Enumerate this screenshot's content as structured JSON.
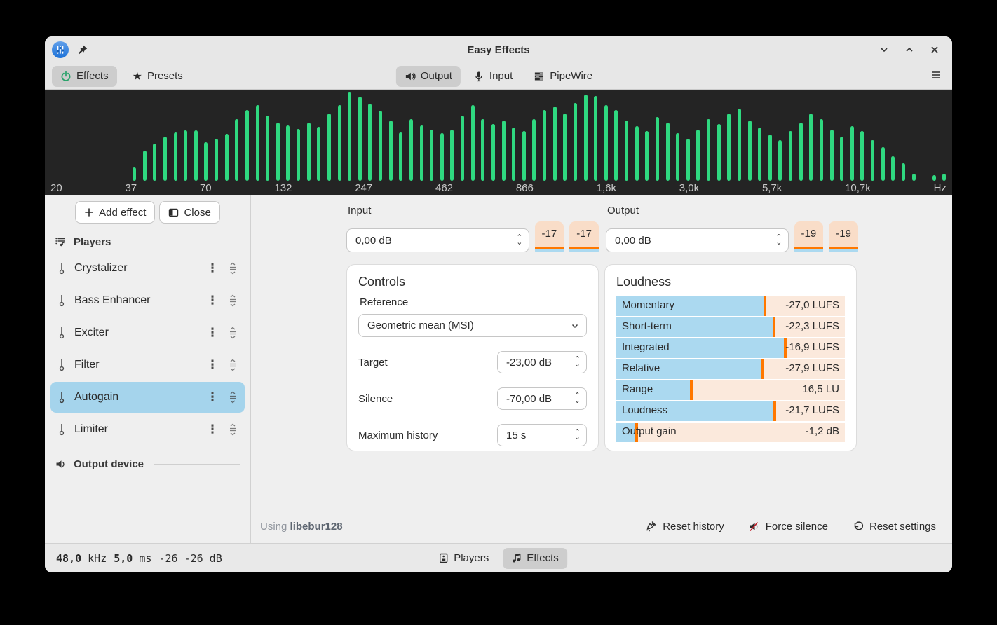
{
  "window": {
    "title": "Easy Effects"
  },
  "header": {
    "effects_label": "Effects",
    "presets_label": "Presets",
    "tabs": {
      "output": "Output",
      "input": "Input",
      "pipewire": "PipeWire"
    }
  },
  "spectrum": {
    "bar_color": "#2fd980",
    "background": "#242424",
    "freq_labels": [
      "20",
      "37",
      "70",
      "132",
      "247",
      "462",
      "866",
      "1,6k",
      "3,0k",
      "5,7k",
      "10,7k",
      "Hz"
    ],
    "bars": [
      0,
      0,
      0,
      0,
      0,
      0,
      0,
      0,
      15,
      34,
      42,
      50,
      55,
      57,
      57,
      44,
      48,
      53,
      70,
      80,
      86,
      74,
      66,
      63,
      59,
      66,
      61,
      76,
      86,
      100,
      95,
      87,
      79,
      68,
      55,
      70,
      63,
      58,
      54,
      58,
      74,
      86,
      70,
      64,
      68,
      60,
      56,
      70,
      80,
      84,
      76,
      88,
      98,
      96,
      86,
      80,
      68,
      62,
      56,
      72,
      66,
      54,
      48,
      58,
      70,
      64,
      76,
      82,
      68,
      60,
      52,
      46,
      56,
      66,
      76,
      70,
      58,
      50,
      62,
      56,
      46,
      38,
      28,
      20,
      8,
      0,
      6,
      8
    ]
  },
  "sidebar": {
    "add_effect_label": "Add effect",
    "close_label": "Close",
    "players_label": "Players",
    "output_device_label": "Output device",
    "items": [
      {
        "label": "Crystalizer",
        "selected": false
      },
      {
        "label": "Bass Enhancer",
        "selected": false
      },
      {
        "label": "Exciter",
        "selected": false
      },
      {
        "label": "Filter",
        "selected": false
      },
      {
        "label": "Autogain",
        "selected": true
      },
      {
        "label": "Limiter",
        "selected": false
      }
    ],
    "selection_color": "#a5d4ec"
  },
  "io": {
    "input_label": "Input",
    "input_value": "0,00 dB",
    "input_meters": [
      "-17",
      "-17"
    ],
    "output_label": "Output",
    "output_value": "0,00 dB",
    "output_meters": [
      "-19",
      "-19"
    ],
    "meter_bg": "#f9ddc8",
    "meter_marker": "#ff7800",
    "meter_fill": "#abd9f0"
  },
  "controls": {
    "title": "Controls",
    "reference_label": "Reference",
    "reference_value": "Geometric mean (MSI)",
    "rows": [
      {
        "label": "Target",
        "value": "-23,00 dB"
      },
      {
        "label": "Silence",
        "value": "-70,00 dB"
      },
      {
        "label": "Maximum history",
        "value": "15 s"
      }
    ]
  },
  "loudness": {
    "title": "Loudness",
    "rows": [
      {
        "label": "Momentary",
        "value": "-27,0 LUFS",
        "fill_pct": 65.5
      },
      {
        "label": "Short-term",
        "value": "-22,3 LUFS",
        "fill_pct": 69.5
      },
      {
        "label": "Integrated",
        "value": "-16,9 LUFS",
        "fill_pct": 74.5
      },
      {
        "label": "Relative",
        "value": "-27,9 LUFS",
        "fill_pct": 64.5
      },
      {
        "label": "Range",
        "value": "16,5 LU",
        "fill_pct": 33.5
      },
      {
        "label": "Loudness",
        "value": "-21,7 LUFS",
        "fill_pct": 70
      },
      {
        "label": "Output gain",
        "value": "-1,2 dB",
        "fill_pct": 9.5
      }
    ]
  },
  "footer": {
    "using_prefix": "Using",
    "library": "libebur128",
    "reset_history_label": "Reset history",
    "force_silence_label": "Force silence",
    "reset_settings_label": "Reset settings"
  },
  "statusbar": {
    "rate_value": "48,0",
    "rate_unit": "kHz",
    "latency_value": "5,0",
    "latency_unit": "ms",
    "level": "-26 -26 dB",
    "players_tab": "Players",
    "effects_tab": "Effects"
  }
}
